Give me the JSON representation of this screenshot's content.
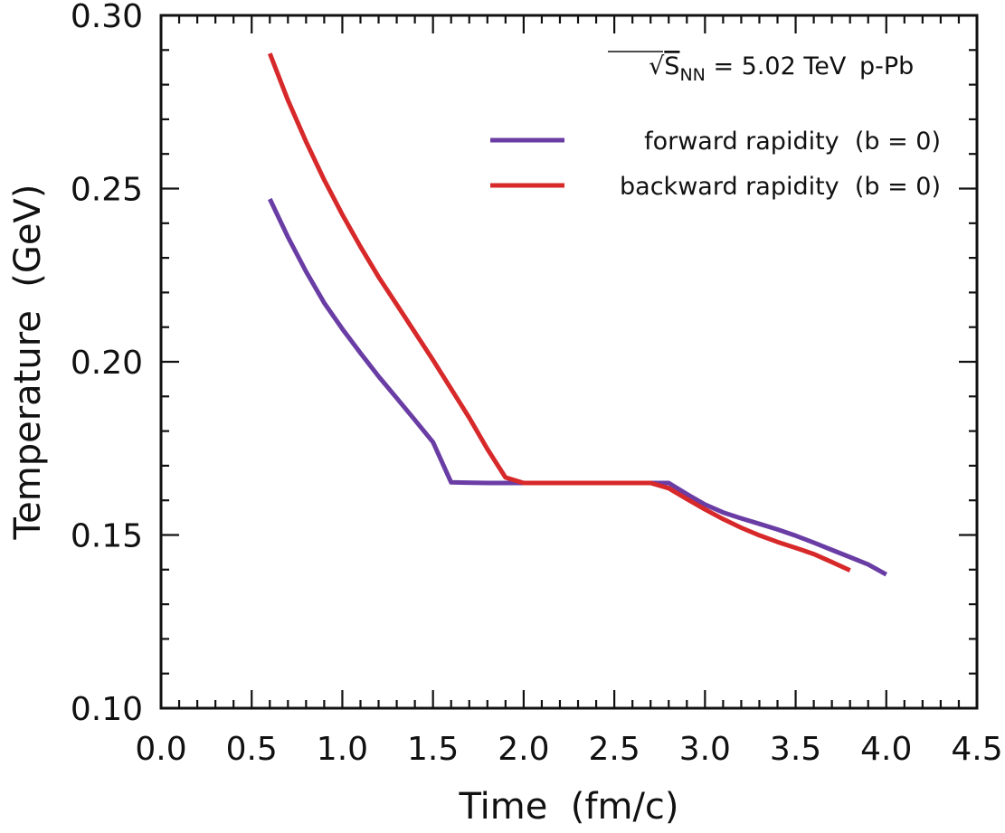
{
  "chart_data": {
    "type": "line",
    "title": "",
    "xlabel": "Time  (fm/c)",
    "ylabel": "Temperature  (GeV)",
    "xlim": [
      0.0,
      4.5
    ],
    "ylim": [
      0.1,
      0.3
    ],
    "x_major_step": 0.5,
    "x_minor_step": 0.1,
    "y_major_step": 0.05,
    "y_minor_step": 0.01,
    "x_tick_labels": [
      "0.0",
      "0.5",
      "1.0",
      "1.5",
      "2.0",
      "2.5",
      "3.0",
      "3.5",
      "4.0",
      "4.5"
    ],
    "y_tick_labels": [
      "0.10",
      "0.15",
      "0.20",
      "0.25",
      "0.30"
    ],
    "grid": false,
    "legend_position": "top-right",
    "annotation": {
      "sqrt_symbol": "√",
      "s_label": "S",
      "s_subscript": "NN",
      "energy": " = 5.02 TeV",
      "system": "p-Pb"
    },
    "series": [
      {
        "name": "forward rapidity  (b = 0)",
        "color": "#6A3DA5",
        "x": [
          0.6,
          0.7,
          0.8,
          0.9,
          1.0,
          1.1,
          1.2,
          1.3,
          1.4,
          1.5,
          1.6,
          1.8,
          2.0,
          2.2,
          2.4,
          2.6,
          2.8,
          2.9,
          3.0,
          3.1,
          3.2,
          3.3,
          3.4,
          3.5,
          3.6,
          3.7,
          3.8,
          3.9,
          4.0
        ],
        "y": [
          0.247,
          0.236,
          0.226,
          0.217,
          0.2095,
          0.2025,
          0.1958,
          0.1895,
          0.1832,
          0.1768,
          0.1652,
          0.165,
          0.165,
          0.165,
          0.165,
          0.165,
          0.165,
          0.1618,
          0.1588,
          0.1565,
          0.1548,
          0.1532,
          0.1516,
          0.1498,
          0.1478,
          0.1457,
          0.1436,
          0.1415,
          0.1386
        ]
      },
      {
        "name": "backward rapidity  (b = 0)",
        "color": "#D7282A",
        "x": [
          0.6,
          0.7,
          0.8,
          0.9,
          1.0,
          1.1,
          1.2,
          1.3,
          1.4,
          1.5,
          1.6,
          1.7,
          1.8,
          1.9,
          2.0,
          2.2,
          2.4,
          2.6,
          2.7,
          2.8,
          2.9,
          3.0,
          3.1,
          3.2,
          3.3,
          3.4,
          3.5,
          3.6,
          3.7,
          3.8
        ],
        "y": [
          0.289,
          0.2755,
          0.2635,
          0.2525,
          0.2425,
          0.2332,
          0.2245,
          0.2165,
          0.2085,
          0.2005,
          0.1922,
          0.1838,
          0.1748,
          0.1666,
          0.165,
          0.165,
          0.165,
          0.165,
          0.165,
          0.1635,
          0.1604,
          0.1574,
          0.1546,
          0.1521,
          0.1499,
          0.148,
          0.1463,
          0.1445,
          0.1422,
          0.1398
        ]
      }
    ]
  }
}
